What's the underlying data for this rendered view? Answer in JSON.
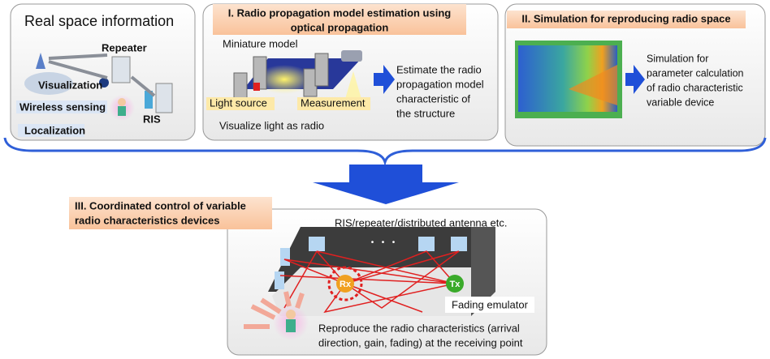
{
  "panel_real_space": {
    "title": "Real space information",
    "labels": [
      "Repeater",
      "Visualization",
      "Wireless sensing",
      "RIS",
      "Localization"
    ]
  },
  "panel_estimation": {
    "title_lines": [
      "I. Radio propagation model estimation using",
      "optical propagation"
    ],
    "miniature_model": "Miniature model",
    "light_source": "Light source",
    "measurement": "Measurement",
    "caption": "Visualize light as radio",
    "result_lines": [
      "Estimate the radio",
      "propagation model",
      "characteristic of",
      "the structure"
    ]
  },
  "panel_simulation": {
    "title": "II. Simulation for reproducing radio space",
    "description_lines": [
      "Simulation for",
      "parameter calculation",
      "of radio characteristic",
      "variable device"
    ]
  },
  "panel_control": {
    "title_lines": [
      "III. Coordinated control of variable",
      "radio characteristics devices"
    ],
    "devices": "RIS/repeater/distributed antenna etc.",
    "ellipsis": "・・・",
    "rx": "Rx",
    "tx": "Tx",
    "fading": "Fading emulator",
    "caption_lines": [
      "Reproduce the radio characteristics (arrival",
      "direction, gain, fading) at the receiving point"
    ]
  }
}
